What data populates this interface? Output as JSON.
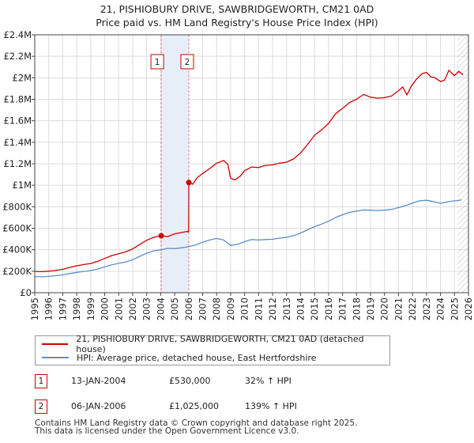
{
  "title": {
    "line1": "21, PISHIOBURY DRIVE, SAWBRIDGEWORTH, CM21 0AD",
    "line2": "Price paid vs. HM Land Registry's House Price Index (HPI)"
  },
  "colors": {
    "property": "#cc0000",
    "hpi": "#5b8fc9",
    "grid": "#dcdcdc",
    "marker_line": "#dd8888",
    "sale_shade": "#e8eef8",
    "hatch": "#bbbbbb"
  },
  "chart_data": {
    "type": "line",
    "x_unit": "year",
    "xlim": [
      1995,
      2026
    ],
    "ylim": [
      0,
      2400000
    ],
    "x_ticks": [
      1995,
      1996,
      1997,
      1998,
      1999,
      2000,
      2001,
      2002,
      2003,
      2004,
      2005,
      2006,
      2007,
      2008,
      2009,
      2010,
      2011,
      2012,
      2013,
      2014,
      2015,
      2016,
      2017,
      2018,
      2019,
      2020,
      2021,
      2022,
      2023,
      2024,
      2025,
      2026
    ],
    "y_ticks": [
      {
        "value": 0,
        "label": "£0"
      },
      {
        "value": 200000,
        "label": "£200K"
      },
      {
        "value": 400000,
        "label": "£400K"
      },
      {
        "value": 600000,
        "label": "£600K"
      },
      {
        "value": 800000,
        "label": "£800K"
      },
      {
        "value": 1000000,
        "label": "£1M"
      },
      {
        "value": 1200000,
        "label": "£1.2M"
      },
      {
        "value": 1400000,
        "label": "£1.4M"
      },
      {
        "value": 1600000,
        "label": "£1.6M"
      },
      {
        "value": 1800000,
        "label": "£1.8M"
      },
      {
        "value": 2000000,
        "label": "£2M"
      },
      {
        "value": 2200000,
        "label": "£2.2M"
      },
      {
        "value": 2400000,
        "label": "£2.4M"
      }
    ],
    "grid": true,
    "hatch_from": 2025.2,
    "series": [
      {
        "name": "21, PISHIOBURY DRIVE, SAWBRIDGEWORTH, CM21 0AD (detached house)",
        "color": "#cc0000",
        "points": [
          [
            1995.0,
            198000
          ],
          [
            1995.5,
            196000
          ],
          [
            1996.0,
            200000
          ],
          [
            1996.5,
            207000
          ],
          [
            1997.0,
            218000
          ],
          [
            1997.5,
            235000
          ],
          [
            1998.0,
            250000
          ],
          [
            1998.5,
            262000
          ],
          [
            1999.0,
            272000
          ],
          [
            1999.5,
            292000
          ],
          [
            2000.0,
            318000
          ],
          [
            2000.5,
            345000
          ],
          [
            2001.0,
            362000
          ],
          [
            2001.5,
            380000
          ],
          [
            2002.0,
            408000
          ],
          [
            2002.5,
            448000
          ],
          [
            2003.0,
            488000
          ],
          [
            2003.5,
            515000
          ],
          [
            2004.04,
            530000
          ],
          [
            2004.5,
            522000
          ],
          [
            2005.0,
            548000
          ],
          [
            2005.5,
            560000
          ],
          [
            2005.9,
            570000
          ],
          [
            2006.0,
            565000
          ],
          [
            2006.01,
            1025000
          ],
          [
            2006.3,
            1010000
          ],
          [
            2006.6,
            1068000
          ],
          [
            2007.0,
            1110000
          ],
          [
            2007.5,
            1155000
          ],
          [
            2008.0,
            1205000
          ],
          [
            2008.5,
            1230000
          ],
          [
            2008.8,
            1195000
          ],
          [
            2009.0,
            1065000
          ],
          [
            2009.3,
            1050000
          ],
          [
            2009.7,
            1085000
          ],
          [
            2010.0,
            1135000
          ],
          [
            2010.5,
            1170000
          ],
          [
            2011.0,
            1165000
          ],
          [
            2011.5,
            1185000
          ],
          [
            2012.0,
            1190000
          ],
          [
            2012.5,
            1205000
          ],
          [
            2013.0,
            1215000
          ],
          [
            2013.5,
            1245000
          ],
          [
            2014.0,
            1300000
          ],
          [
            2014.5,
            1380000
          ],
          [
            2015.0,
            1465000
          ],
          [
            2015.5,
            1515000
          ],
          [
            2016.0,
            1575000
          ],
          [
            2016.5,
            1665000
          ],
          [
            2017.0,
            1715000
          ],
          [
            2017.5,
            1770000
          ],
          [
            2018.0,
            1800000
          ],
          [
            2018.5,
            1845000
          ],
          [
            2019.0,
            1820000
          ],
          [
            2019.5,
            1810000
          ],
          [
            2020.0,
            1815000
          ],
          [
            2020.5,
            1830000
          ],
          [
            2021.0,
            1880000
          ],
          [
            2021.3,
            1915000
          ],
          [
            2021.6,
            1840000
          ],
          [
            2021.9,
            1920000
          ],
          [
            2022.3,
            1990000
          ],
          [
            2022.7,
            2040000
          ],
          [
            2023.0,
            2050000
          ],
          [
            2023.3,
            2010000
          ],
          [
            2023.6,
            2000000
          ],
          [
            2024.0,
            1965000
          ],
          [
            2024.3,
            1980000
          ],
          [
            2024.6,
            2070000
          ],
          [
            2025.0,
            2020000
          ],
          [
            2025.3,
            2060000
          ],
          [
            2025.6,
            2030000
          ]
        ]
      },
      {
        "name": "HPI: Average price, detached house, East Hertfordshire",
        "color": "#5b8fc9",
        "points": [
          [
            1995.0,
            150000
          ],
          [
            1995.5,
            148000
          ],
          [
            1996.0,
            152000
          ],
          [
            1996.5,
            158000
          ],
          [
            1997.0,
            166000
          ],
          [
            1997.5,
            178000
          ],
          [
            1998.0,
            189000
          ],
          [
            1998.5,
            198000
          ],
          [
            1999.0,
            206000
          ],
          [
            1999.5,
            220000
          ],
          [
            2000.0,
            240000
          ],
          [
            2000.5,
            260000
          ],
          [
            2001.0,
            273000
          ],
          [
            2001.5,
            286000
          ],
          [
            2002.0,
            308000
          ],
          [
            2002.5,
            338000
          ],
          [
            2003.0,
            368000
          ],
          [
            2003.5,
            389000
          ],
          [
            2004.04,
            400000
          ],
          [
            2004.5,
            412000
          ],
          [
            2005.0,
            410000
          ],
          [
            2005.5,
            418000
          ],
          [
            2006.0,
            428000
          ],
          [
            2006.5,
            445000
          ],
          [
            2007.0,
            470000
          ],
          [
            2007.5,
            490000
          ],
          [
            2008.0,
            505000
          ],
          [
            2008.5,
            490000
          ],
          [
            2009.0,
            440000
          ],
          [
            2009.5,
            450000
          ],
          [
            2010.0,
            475000
          ],
          [
            2010.5,
            495000
          ],
          [
            2011.0,
            490000
          ],
          [
            2011.5,
            495000
          ],
          [
            2012.0,
            498000
          ],
          [
            2012.5,
            508000
          ],
          [
            2013.0,
            515000
          ],
          [
            2013.5,
            530000
          ],
          [
            2014.0,
            555000
          ],
          [
            2014.5,
            585000
          ],
          [
            2015.0,
            615000
          ],
          [
            2015.5,
            638000
          ],
          [
            2016.0,
            665000
          ],
          [
            2016.5,
            700000
          ],
          [
            2017.0,
            725000
          ],
          [
            2017.5,
            748000
          ],
          [
            2018.0,
            760000
          ],
          [
            2018.5,
            770000
          ],
          [
            2019.0,
            768000
          ],
          [
            2019.5,
            765000
          ],
          [
            2020.0,
            768000
          ],
          [
            2020.5,
            775000
          ],
          [
            2021.0,
            792000
          ],
          [
            2021.5,
            810000
          ],
          [
            2022.0,
            835000
          ],
          [
            2022.5,
            855000
          ],
          [
            2023.0,
            860000
          ],
          [
            2023.5,
            848000
          ],
          [
            2024.0,
            832000
          ],
          [
            2024.5,
            845000
          ],
          [
            2025.0,
            855000
          ],
          [
            2025.5,
            862000
          ]
        ]
      }
    ],
    "sales": [
      {
        "id": "1",
        "date": "13-JAN-2004",
        "year": 2004.04,
        "price": 530000,
        "price_label": "£530,000",
        "hpi_note": "32% ↑ HPI"
      },
      {
        "id": "2",
        "date": "06-JAN-2006",
        "year": 2006.01,
        "price": 1025000,
        "price_label": "£1,025,000",
        "hpi_note": "139% ↑ HPI"
      }
    ],
    "sale_badge_value": 2150000
  },
  "legend": {
    "property_label": "21, PISHIOBURY DRIVE, SAWBRIDGEWORTH, CM21 0AD (detached house)",
    "hpi_label": "HPI: Average price, detached house, East Hertfordshire"
  },
  "transactions": [
    {
      "id": "1",
      "date": "13-JAN-2004",
      "price": "£530,000",
      "hpi": "32% ↑ HPI"
    },
    {
      "id": "2",
      "date": "06-JAN-2006",
      "price": "£1,025,000",
      "hpi": "139% ↑ HPI"
    }
  ],
  "footer": {
    "line1": "Contains HM Land Registry data © Crown copyright and database right 2025.",
    "line2": "This data is licensed under the Open Government Licence v3.0."
  }
}
